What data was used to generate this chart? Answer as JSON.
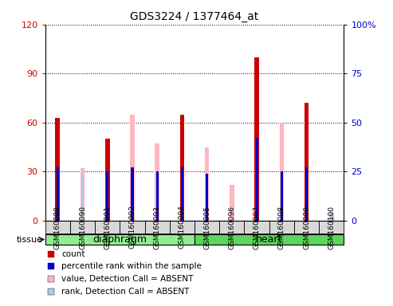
{
  "title": "GDS3224 / 1377464_at",
  "samples": [
    "GSM160089",
    "GSM160090",
    "GSM160091",
    "GSM160092",
    "GSM160093",
    "GSM160094",
    "GSM160095",
    "GSM160096",
    "GSM160097",
    "GSM160098",
    "GSM160099",
    "GSM160100"
  ],
  "tissue_groups": [
    {
      "label": "diaphragm",
      "start": 0,
      "end": 5,
      "color": "#90EE90"
    },
    {
      "label": "heart",
      "start": 6,
      "end": 11,
      "color": "#5CD65C"
    }
  ],
  "count_values": [
    63,
    0,
    50,
    0,
    0,
    65,
    0,
    0,
    100,
    0,
    72,
    0
  ],
  "count_absent_values": [
    0,
    32,
    0,
    65,
    47,
    0,
    45,
    22,
    0,
    60,
    0,
    5
  ],
  "rank_values": [
    27,
    0,
    25,
    27,
    25,
    27,
    24,
    0,
    42,
    25,
    27,
    0
  ],
  "rank_absent_values": [
    0,
    24,
    0,
    0,
    0,
    0,
    0,
    0,
    0,
    0,
    0,
    5
  ],
  "count_color": "#CC0000",
  "count_absent_color": "#FFB6C1",
  "rank_color": "#0000CC",
  "rank_absent_color": "#AACCE8",
  "ylim_left": [
    0,
    120
  ],
  "ylim_right": [
    0,
    100
  ],
  "yticks_left": [
    0,
    30,
    60,
    90,
    120
  ],
  "yticks_right": [
    0,
    25,
    50,
    75,
    100
  ],
  "yticklabels_right": [
    "0",
    "25",
    "50",
    "75",
    "100%"
  ],
  "background_color": "#ffffff",
  "plot_bg_color": "#ffffff",
  "tissue_label": "tissue"
}
